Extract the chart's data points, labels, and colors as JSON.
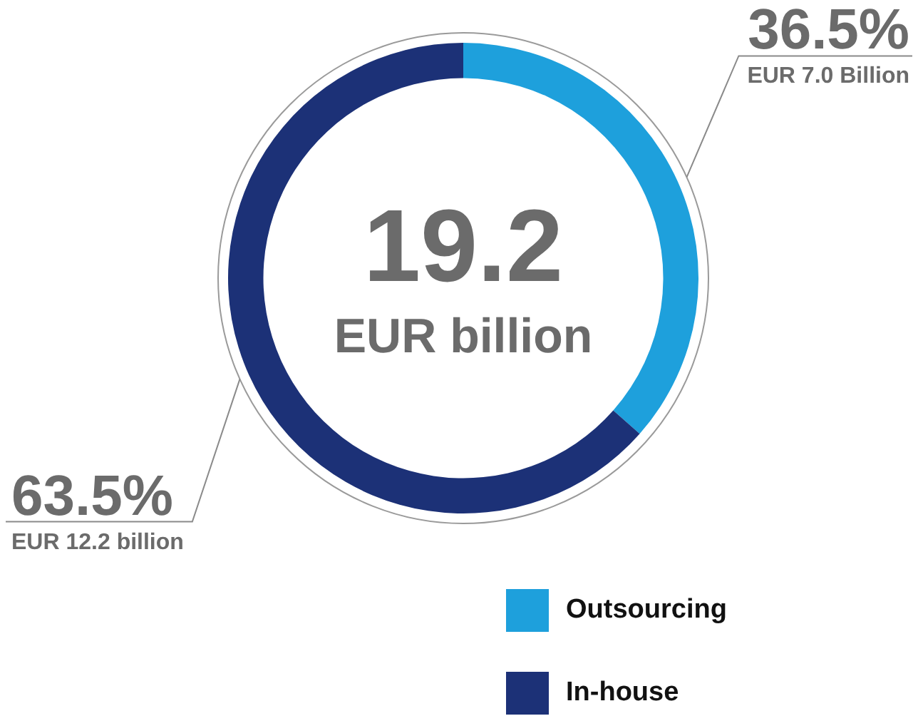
{
  "chart_data": {
    "type": "donut",
    "categories": [
      "Outsourcing",
      "In-house"
    ],
    "values": [
      36.5,
      63.5
    ],
    "colors": [
      "#1ea0dc",
      "#1c3177"
    ],
    "value_labels": [
      "36.5%",
      "63.5%"
    ],
    "annotations": [
      "19.2",
      "EUR billion",
      "EUR 7.0 Billion",
      "EUR 12.2 billion"
    ],
    "legend": "bottom"
  }
}
